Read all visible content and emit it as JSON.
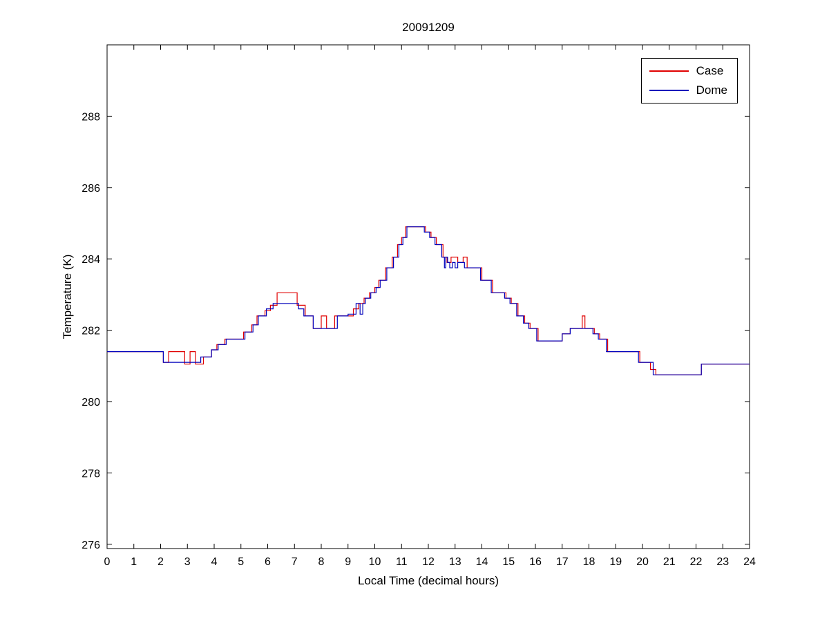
{
  "figure": {
    "background": "#ffffff",
    "axes_color": "#000000"
  },
  "chart_data": {
    "type": "line",
    "step": true,
    "title": "20091209",
    "xlabel": "Local Time (decimal hours)",
    "ylabel": "Temperature (K)",
    "xlim": [
      0,
      24
    ],
    "ylim": [
      275.88,
      290.0
    ],
    "xticks": [
      0,
      1,
      2,
      3,
      4,
      5,
      6,
      7,
      8,
      9,
      10,
      11,
      12,
      13,
      14,
      15,
      16,
      17,
      18,
      19,
      20,
      21,
      22,
      23,
      24
    ],
    "yticks": [
      276,
      278,
      280,
      282,
      284,
      286,
      288
    ],
    "grid": false,
    "legend_position": "top-right",
    "series": [
      {
        "name": "Case",
        "color": "#e00000",
        "points": [
          [
            0.0,
            281.4
          ],
          [
            2.1,
            281.1
          ],
          [
            2.3,
            281.4
          ],
          [
            2.9,
            281.05
          ],
          [
            3.1,
            281.4
          ],
          [
            3.3,
            281.05
          ],
          [
            3.6,
            281.25
          ],
          [
            3.9,
            281.45
          ],
          [
            4.1,
            281.6
          ],
          [
            4.4,
            281.75
          ],
          [
            5.1,
            281.95
          ],
          [
            5.4,
            282.15
          ],
          [
            5.6,
            282.4
          ],
          [
            5.9,
            282.55
          ],
          [
            6.1,
            282.7
          ],
          [
            6.35,
            283.05
          ],
          [
            7.1,
            282.7
          ],
          [
            7.4,
            282.4
          ],
          [
            7.7,
            282.05
          ],
          [
            8.0,
            282.4
          ],
          [
            8.2,
            282.05
          ],
          [
            8.5,
            282.4
          ],
          [
            9.2,
            282.6
          ],
          [
            9.4,
            282.75
          ],
          [
            9.6,
            282.9
          ],
          [
            9.8,
            283.05
          ],
          [
            10.0,
            283.2
          ],
          [
            10.15,
            283.4
          ],
          [
            10.4,
            283.75
          ],
          [
            10.65,
            284.05
          ],
          [
            10.85,
            284.4
          ],
          [
            11.0,
            284.6
          ],
          [
            11.15,
            284.9
          ],
          [
            11.9,
            284.75
          ],
          [
            12.1,
            284.6
          ],
          [
            12.3,
            284.4
          ],
          [
            12.55,
            284.05
          ],
          [
            12.7,
            283.9
          ],
          [
            12.85,
            284.05
          ],
          [
            13.1,
            283.9
          ],
          [
            13.3,
            284.05
          ],
          [
            13.45,
            283.75
          ],
          [
            14.0,
            283.4
          ],
          [
            14.4,
            283.05
          ],
          [
            14.9,
            282.9
          ],
          [
            15.1,
            282.75
          ],
          [
            15.35,
            282.4
          ],
          [
            15.6,
            282.2
          ],
          [
            15.8,
            282.05
          ],
          [
            16.1,
            281.7
          ],
          [
            17.0,
            281.9
          ],
          [
            17.3,
            282.05
          ],
          [
            17.75,
            282.4
          ],
          [
            17.85,
            282.05
          ],
          [
            18.2,
            281.9
          ],
          [
            18.4,
            281.75
          ],
          [
            18.7,
            281.4
          ],
          [
            19.9,
            281.1
          ],
          [
            20.3,
            280.9
          ],
          [
            20.5,
            280.75
          ],
          [
            22.2,
            281.05
          ],
          [
            24.0,
            281.05
          ]
        ]
      },
      {
        "name": "Dome",
        "color": "#0000bb",
        "points": [
          [
            0.0,
            281.4
          ],
          [
            2.1,
            281.1
          ],
          [
            3.5,
            281.25
          ],
          [
            3.9,
            281.45
          ],
          [
            4.15,
            281.6
          ],
          [
            4.45,
            281.75
          ],
          [
            5.15,
            281.95
          ],
          [
            5.45,
            282.15
          ],
          [
            5.65,
            282.4
          ],
          [
            5.95,
            282.6
          ],
          [
            6.2,
            282.75
          ],
          [
            7.15,
            282.6
          ],
          [
            7.35,
            282.4
          ],
          [
            7.7,
            282.05
          ],
          [
            8.6,
            282.4
          ],
          [
            9.0,
            282.45
          ],
          [
            9.3,
            282.75
          ],
          [
            9.45,
            282.45
          ],
          [
            9.55,
            282.75
          ],
          [
            9.65,
            282.9
          ],
          [
            9.85,
            283.05
          ],
          [
            10.05,
            283.2
          ],
          [
            10.2,
            283.4
          ],
          [
            10.45,
            283.75
          ],
          [
            10.7,
            284.05
          ],
          [
            10.9,
            284.4
          ],
          [
            11.05,
            284.6
          ],
          [
            11.2,
            284.9
          ],
          [
            11.85,
            284.75
          ],
          [
            12.05,
            284.6
          ],
          [
            12.25,
            284.4
          ],
          [
            12.5,
            284.05
          ],
          [
            12.6,
            283.75
          ],
          [
            12.65,
            284.05
          ],
          [
            12.72,
            283.9
          ],
          [
            12.8,
            283.75
          ],
          [
            12.9,
            283.9
          ],
          [
            13.0,
            283.75
          ],
          [
            13.1,
            283.9
          ],
          [
            13.35,
            283.75
          ],
          [
            13.95,
            283.4
          ],
          [
            14.35,
            283.05
          ],
          [
            14.85,
            282.9
          ],
          [
            15.05,
            282.75
          ],
          [
            15.3,
            282.4
          ],
          [
            15.55,
            282.2
          ],
          [
            15.75,
            282.05
          ],
          [
            16.05,
            281.7
          ],
          [
            17.0,
            281.9
          ],
          [
            17.3,
            282.05
          ],
          [
            18.15,
            281.9
          ],
          [
            18.35,
            281.75
          ],
          [
            18.65,
            281.4
          ],
          [
            19.85,
            281.1
          ],
          [
            20.4,
            280.75
          ],
          [
            22.2,
            281.05
          ],
          [
            24.0,
            281.05
          ]
        ]
      }
    ]
  }
}
